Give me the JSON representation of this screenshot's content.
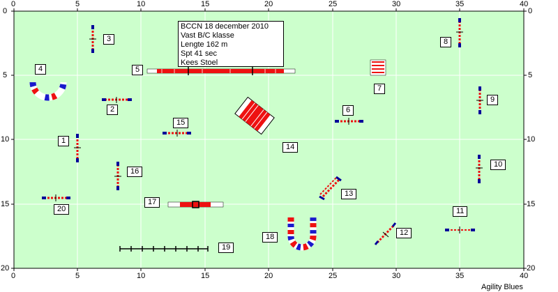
{
  "info": {
    "title": "BCCN 18 december 2010",
    "class": "Vast B/C klasse",
    "length": "Lengte 162 m",
    "time": "Spt 41 sec",
    "judge": "Kees Stoel"
  },
  "axes": {
    "x_ticks": [
      "0",
      "5",
      "10",
      "15",
      "20",
      "25",
      "30",
      "35",
      "40"
    ],
    "y_ticks": [
      "0",
      "5",
      "10",
      "15",
      "20"
    ]
  },
  "obstacle_numbers": [
    "1",
    "2",
    "3",
    "4",
    "5",
    "6",
    "7",
    "8",
    "9",
    "10",
    "11",
    "12",
    "13",
    "14",
    "15",
    "16",
    "17",
    "18",
    "19",
    "20"
  ],
  "credit": "Agility Blues",
  "colors": {
    "field": "#ccffcc",
    "grid": "#ffffff",
    "bar_red": "#ee1111",
    "wing_blue": "#000099",
    "tunnel_blue": "#1a1acc"
  }
}
